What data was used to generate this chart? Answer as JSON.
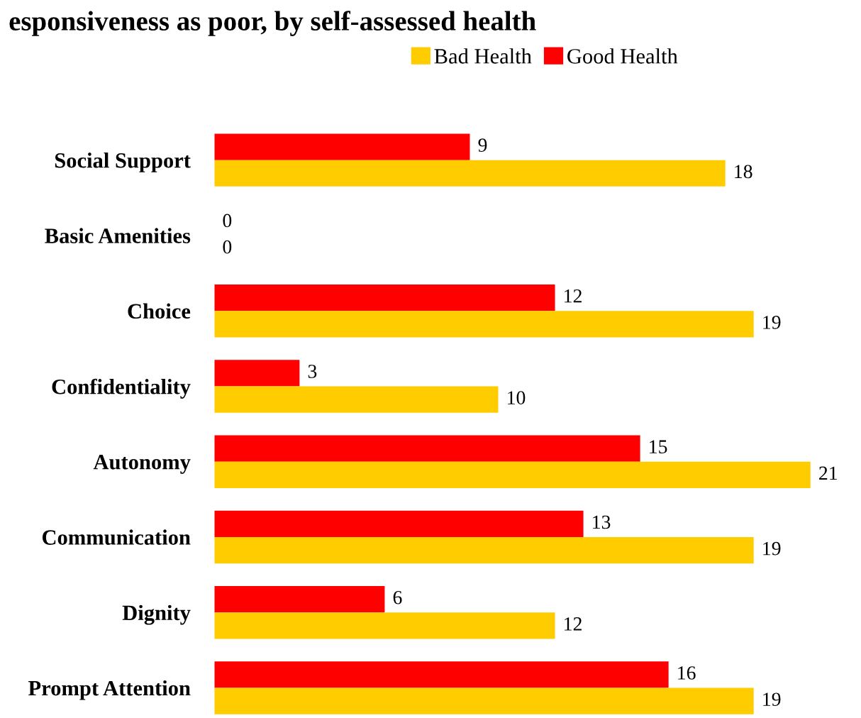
{
  "chart_data": {
    "type": "bar",
    "orientation": "horizontal",
    "title": "esponsiveness as poor, by self-assessed health",
    "categories": [
      "Social Support",
      "Basic Amenities",
      "Choice",
      "Confidentiality",
      "Autonomy",
      "Communication",
      "Dignity",
      "Prompt Attention"
    ],
    "series": [
      {
        "name": "Good Health",
        "color": "#ff0000",
        "values": [
          9,
          0,
          12,
          3,
          15,
          13,
          6,
          16
        ]
      },
      {
        "name": "Bad Health",
        "color": "#ffcc00",
        "values": [
          18,
          0,
          19,
          10,
          21,
          19,
          12,
          19
        ]
      }
    ],
    "data_labels": true,
    "legend": "top right",
    "grid": false,
    "tick_labels": "y"
  }
}
